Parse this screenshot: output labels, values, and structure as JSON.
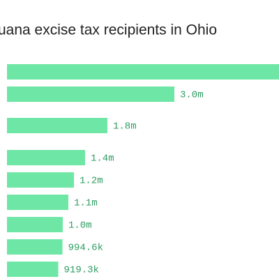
{
  "chart_data": {
    "type": "hbar",
    "title": "uana excise tax recipients in Ohio",
    "values": [
      5000000,
      3000000,
      1800000,
      1400000,
      1200000,
      1100000,
      1000000,
      994600,
      919300
    ],
    "value_labels": [
      null,
      "3.0m",
      "1.8m",
      "1.4m",
      "1.2m",
      "1.1m",
      "1.0m",
      "994.6k",
      "919.3k"
    ],
    "color": "#6ee6a5",
    "xlim": [
      0,
      5000000
    ]
  }
}
